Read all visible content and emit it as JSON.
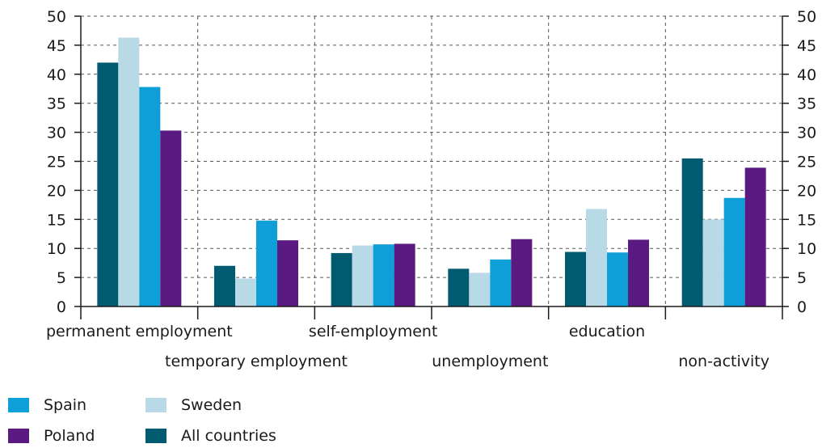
{
  "chart_data": {
    "type": "bar",
    "categories": [
      "permanent employment",
      "temporary employment",
      "self-employment",
      "unemployment",
      "education",
      "non-activity"
    ],
    "series": [
      {
        "name": "All countries",
        "color": "#005a70",
        "values": [
          42,
          7,
          9.2,
          6.5,
          9.4,
          25.5
        ]
      },
      {
        "name": "Sweden",
        "color": "#b8d9e6",
        "values": [
          46.3,
          4.8,
          10.5,
          5.8,
          16.8,
          15
        ]
      },
      {
        "name": "Spain",
        "color": "#0e9ed8",
        "values": [
          37.8,
          14.8,
          10.7,
          8.1,
          9.3,
          18.7
        ]
      },
      {
        "name": "Poland",
        "color": "#5b1a82",
        "values": [
          30.3,
          11.4,
          10.8,
          11.6,
          11.5,
          23.9
        ]
      }
    ],
    "ylim": [
      0,
      50
    ],
    "yticks": [
      0,
      5,
      10,
      15,
      20,
      25,
      30,
      35,
      40,
      45,
      50
    ],
    "y_axis_both_sides": true,
    "grid": "dashed horizontal and vertical",
    "legend_placement": "bottom-left",
    "legend_order": [
      "Spain",
      "Sweden",
      "Poland",
      "All countries"
    ]
  }
}
